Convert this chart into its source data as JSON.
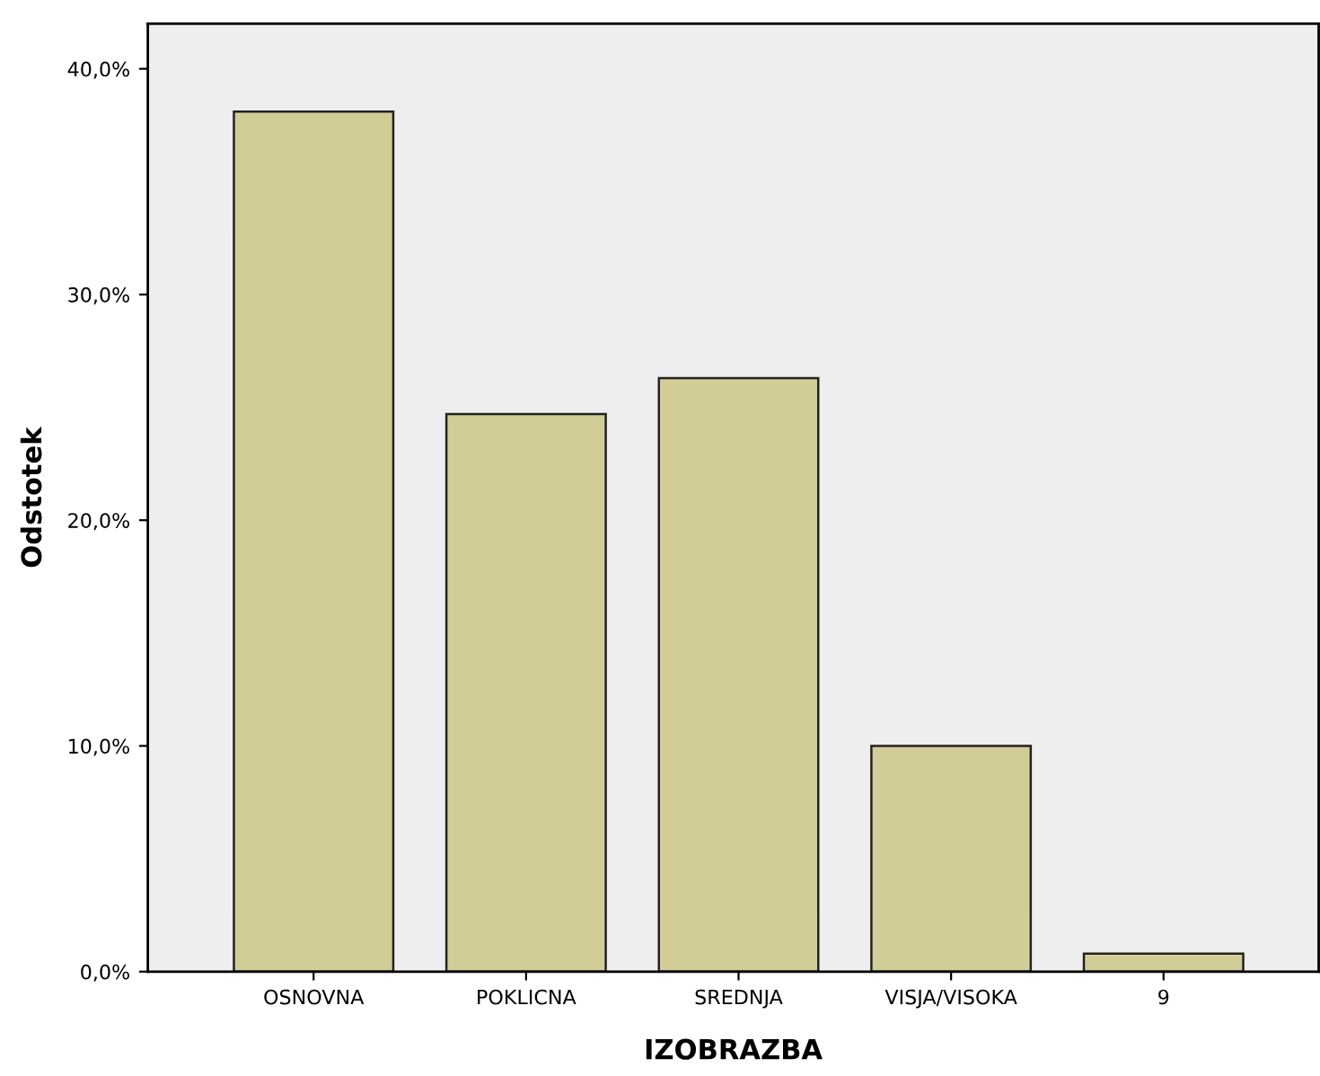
{
  "chart_data": {
    "type": "bar",
    "xlabel": "IZOBRAZBA",
    "ylabel": "Odstotek",
    "categories": [
      "OSNOVNA",
      "POKLICNA",
      "SREDNJA",
      "VISJA/VISOKA",
      "9"
    ],
    "values": [
      38.1,
      24.7,
      26.3,
      10.0,
      0.8
    ],
    "color": "#d2cd96",
    "ylim": [
      0,
      42
    ],
    "yticks": [
      {
        "value": 0,
        "label": "0,0%"
      },
      {
        "value": 10,
        "label": "10,0%"
      },
      {
        "value": 20,
        "label": "20,0%"
      },
      {
        "value": 30,
        "label": "30,0%"
      },
      {
        "value": 40,
        "label": "40,0%"
      }
    ],
    "grid": false
  }
}
